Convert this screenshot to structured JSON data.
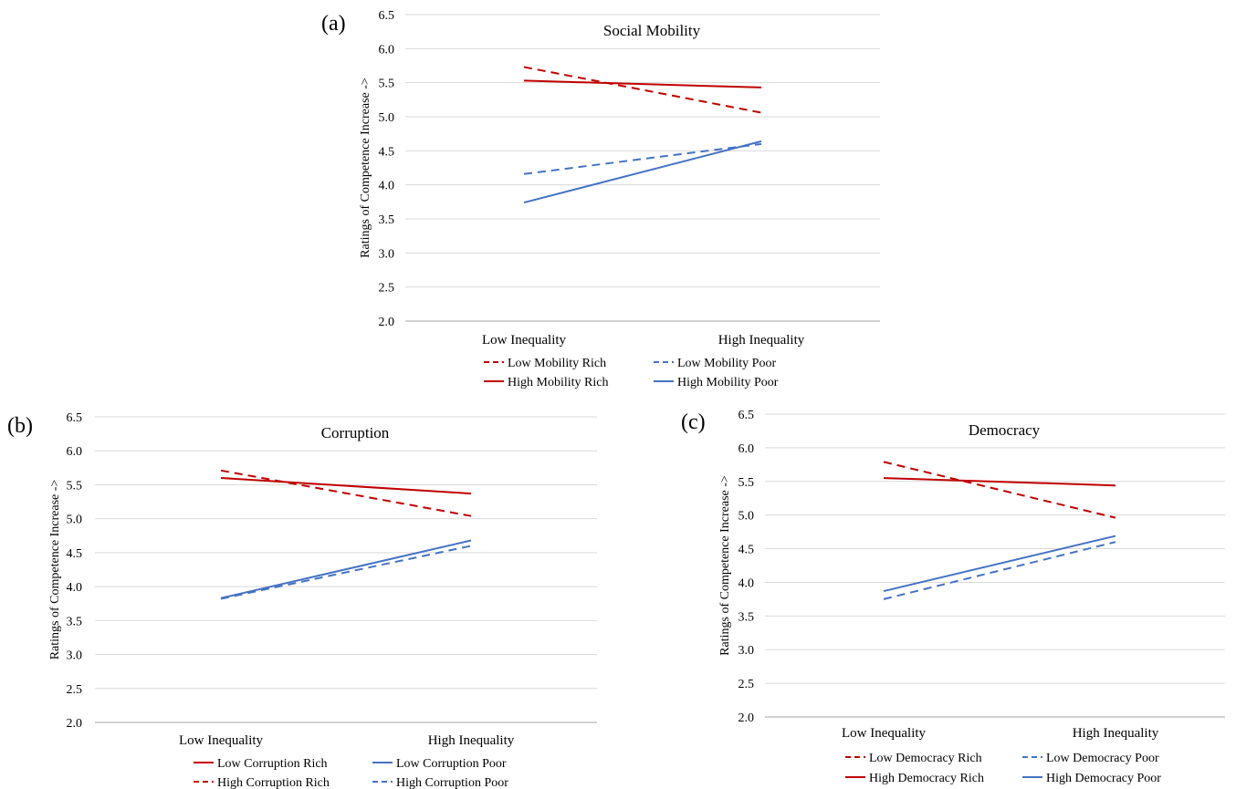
{
  "chart_data": [
    {
      "type": "line",
      "panel_label": "(a)",
      "title": "Social Mobility",
      "ylabel": "Ratings of Competence Increase ->",
      "categories": [
        "Low Inequality",
        "High Inequality"
      ],
      "ylim": [
        2.0,
        6.5
      ],
      "yticks": [
        "2.0",
        "2.5",
        "3.0",
        "3.5",
        "4.0",
        "4.5",
        "5.0",
        "5.5",
        "6.0",
        "6.5"
      ],
      "grid": true,
      "legend_position": "bottom",
      "colors": {
        "rich": "#c00000",
        "poor": "#4472c4"
      },
      "series": [
        {
          "name": "Low Mobility Rich",
          "values": [
            5.73,
            5.06
          ],
          "color": "#c00000",
          "dash": true
        },
        {
          "name": "Low Mobility Poor",
          "values": [
            4.16,
            4.6
          ],
          "color": "#4472c4",
          "dash": true
        },
        {
          "name": "High Mobility Rich",
          "values": [
            5.53,
            5.43
          ],
          "color": "#c00000",
          "dash": false
        },
        {
          "name": "High Mobility Poor",
          "values": [
            3.74,
            4.64
          ],
          "color": "#4472c4",
          "dash": false
        }
      ]
    },
    {
      "type": "line",
      "panel_label": "(b)",
      "title": "Corruption",
      "ylabel": "Ratings of Competence Increase ->",
      "categories": [
        "Low Inequality",
        "High Inequality"
      ],
      "ylim": [
        2.0,
        6.5
      ],
      "yticks": [
        "2.0",
        "2.5",
        "3.0",
        "3.5",
        "4.0",
        "4.5",
        "5.0",
        "5.5",
        "6.0",
        "6.5"
      ],
      "grid": true,
      "legend_position": "bottom",
      "colors": {
        "rich": "#c00000",
        "poor": "#4472c4"
      },
      "series": [
        {
          "name": "Low Corruption Rich",
          "values": [
            5.6,
            5.37
          ],
          "color": "#c00000",
          "dash": false
        },
        {
          "name": "Low Corruption Poor",
          "values": [
            3.83,
            4.68
          ],
          "color": "#4472c4",
          "dash": false
        },
        {
          "name": "High Corruption Rich",
          "values": [
            5.71,
            5.04
          ],
          "color": "#c00000",
          "dash": true
        },
        {
          "name": "High Corruption Poor",
          "values": [
            3.82,
            4.6
          ],
          "color": "#4472c4",
          "dash": true
        }
      ]
    },
    {
      "type": "line",
      "panel_label": "(c)",
      "title": "Democracy",
      "ylabel": "Ratings of Competence Increase ->",
      "categories": [
        "Low Inequality",
        "High Inequality"
      ],
      "ylim": [
        2.0,
        6.5
      ],
      "yticks": [
        "2.0",
        "2.5",
        "3.0",
        "3.5",
        "4.0",
        "4.5",
        "5.0",
        "5.5",
        "6.0",
        "6.5"
      ],
      "grid": true,
      "legend_position": "bottom",
      "colors": {
        "rich": "#c00000",
        "poor": "#4472c4"
      },
      "series": [
        {
          "name": "Low Democracy Rich",
          "values": [
            5.79,
            4.96
          ],
          "color": "#c00000",
          "dash": true
        },
        {
          "name": "Low Democracy Poor",
          "values": [
            3.75,
            4.6
          ],
          "color": "#4472c4",
          "dash": true
        },
        {
          "name": "High Democracy Rich",
          "values": [
            5.55,
            5.44
          ],
          "color": "#c00000",
          "dash": false
        },
        {
          "name": "High Democracy Poor",
          "values": [
            3.87,
            4.69
          ],
          "color": "#4472c4",
          "dash": false
        }
      ]
    }
  ]
}
